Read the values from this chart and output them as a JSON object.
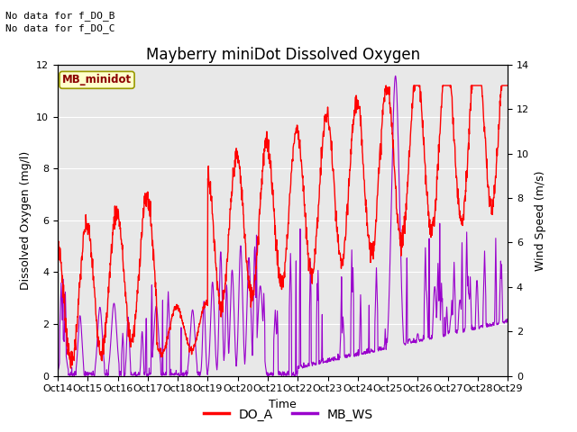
{
  "title": "Mayberry miniDot Dissolved Oxygen",
  "ylabel_left": "Dissolved Oxygen (mg/l)",
  "ylabel_right": "Wind Speed (m/s)",
  "xlabel": "Time",
  "ylim_left": [
    0,
    12
  ],
  "ylim_right": [
    0,
    14
  ],
  "xtick_labels": [
    "Oct 14",
    "Oct 15",
    "Oct 16",
    "Oct 17",
    "Oct 18",
    "Oct 19",
    "Oct 20",
    "Oct 21",
    "Oct 22",
    "Oct 23",
    "Oct 24",
    "Oct 25",
    "Oct 26",
    "Oct 27",
    "Oct 28",
    "Oct 29"
  ],
  "color_do": "#ff0000",
  "color_ws": "#9900cc",
  "annotation1": "No data for f_DO_B",
  "annotation2": "No data for f_DO_C",
  "legend_box_label": "MB_minidot",
  "legend_box_facecolor": "#ffffcc",
  "legend_box_edgecolor": "#999900",
  "legend_line1_label": "DO_A",
  "legend_line2_label": "MB_WS",
  "plot_bg_color": "#e8e8e8",
  "title_fontsize": 12,
  "axis_label_fontsize": 9,
  "tick_fontsize": 8,
  "annot_fontsize": 8
}
